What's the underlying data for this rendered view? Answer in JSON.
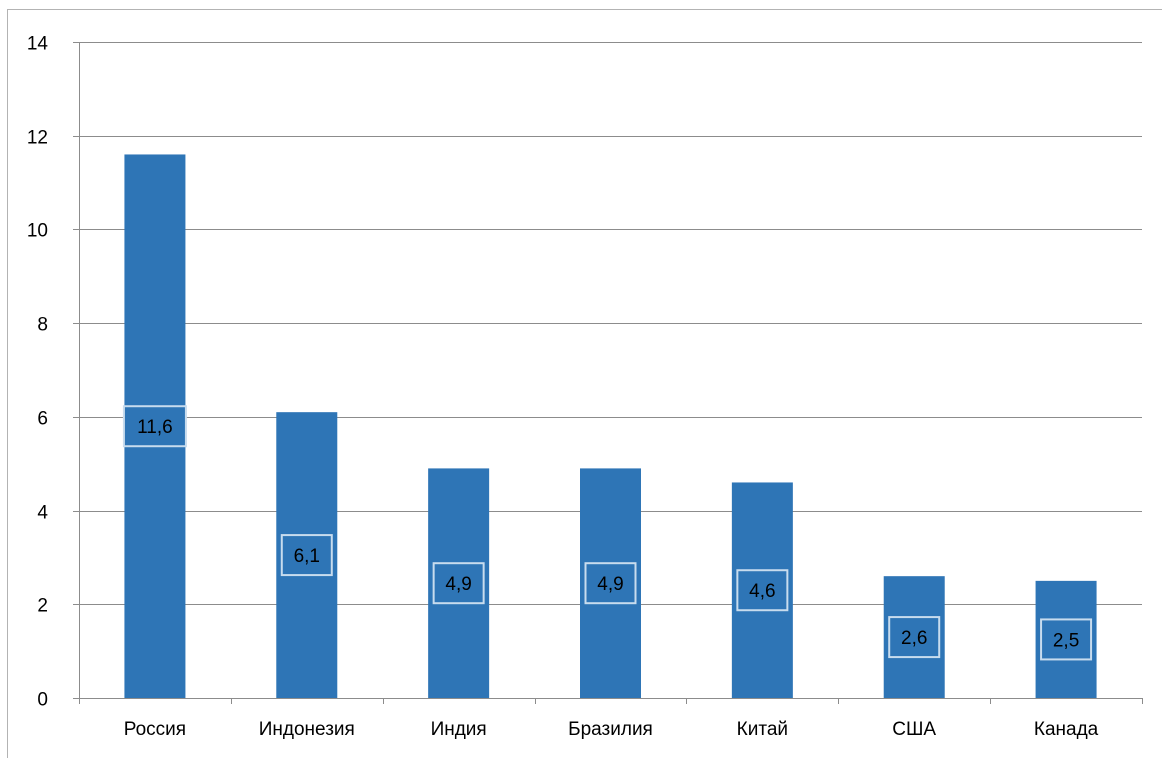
{
  "chart_data": {
    "type": "bar",
    "categories": [
      "Россия",
      "Индонезия",
      "Индия",
      "Бразилия",
      "Китай",
      "США",
      "Канада"
    ],
    "values": [
      11.6,
      6.1,
      4.9,
      4.9,
      4.6,
      2.6,
      2.5
    ],
    "data_labels": [
      "11,6",
      "6,1",
      "4,9",
      "4,9",
      "4,6",
      "2,6",
      "2,5"
    ],
    "y_ticks": [
      "0",
      "2",
      "4",
      "6",
      "8",
      "10",
      "12",
      "14"
    ],
    "title": "",
    "xlabel": "",
    "ylabel": "",
    "ylim": [
      0,
      14
    ],
    "grid": true,
    "legend": "none",
    "bar_color": "#2e75b6",
    "label_box_color": "#c8dcee"
  }
}
